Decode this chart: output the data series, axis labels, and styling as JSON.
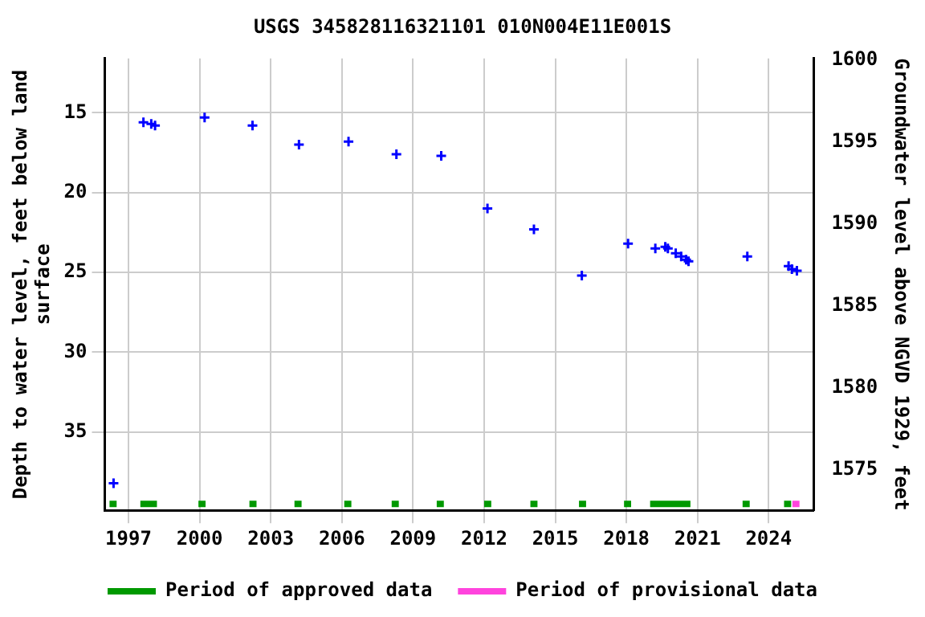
{
  "chart_data": {
    "type": "scatter",
    "title": "USGS 345828116321101 010N004E11E001S",
    "ylabel": "Depth to water level, feet below land surface",
    "y2label": "Groundwater level above NGVD 1929, feet",
    "x": [
      1996.37,
      1997.63,
      1997.96,
      1998.12,
      2000.21,
      2002.23,
      2004.19,
      2006.28,
      2008.3,
      2010.19,
      2012.14,
      2014.1,
      2016.12,
      2018.07,
      2019.22,
      2019.64,
      2019.75,
      2020.08,
      2020.31,
      2020.52,
      2020.62,
      2023.1,
      2024.84,
      2024.98,
      2025.19
    ],
    "series": [
      {
        "color": "#0000ff",
        "values": [
          38.2,
          15.6,
          15.7,
          15.8,
          15.3,
          15.8,
          17.0,
          16.8,
          17.6,
          17.7,
          21.0,
          22.3,
          25.2,
          23.2,
          23.5,
          23.4,
          23.5,
          23.8,
          24.0,
          24.2,
          24.3,
          24.0,
          24.6,
          24.8,
          24.9
        ]
      },
      {
        "type": "line",
        "name": "Period of approved data",
        "color": "#009900",
        "marker": "none",
        "x": [
          1996.2,
          1996.5,
          1997.0,
          1997.5,
          1998.2,
          1999.0,
          1999.95,
          2000.25,
          2001.0,
          2002.1,
          2002.4,
          2003.0,
          2004.0,
          2004.3,
          2005.0,
          2006.1,
          2006.4,
          2007.0,
          2008.1,
          2008.4,
          2009.0,
          2010.0,
          2010.3,
          2011.0,
          2012.0,
          2012.3,
          2013.0,
          2013.95,
          2014.25,
          2015.0,
          2016.0,
          2016.3,
          2017.0,
          2017.9,
          2018.2,
          2018.6,
          2019.0,
          2020.7,
          2021.5,
          2022.9,
          2023.2,
          2024.0,
          2024.65,
          2024.95
        ],
        "values": [
          39.5,
          39.5,
          null,
          39.5,
          39.5,
          null,
          39.5,
          39.5,
          null,
          39.5,
          39.5,
          null,
          39.5,
          39.5,
          null,
          39.5,
          39.5,
          null,
          39.5,
          39.5,
          null,
          39.5,
          39.5,
          null,
          39.5,
          39.5,
          null,
          39.5,
          39.5,
          null,
          39.5,
          39.5,
          null,
          39.5,
          39.5,
          null,
          39.5,
          39.5,
          null,
          39.5,
          39.5,
          null,
          39.5,
          39.5
        ]
      },
      {
        "type": "line",
        "name": "Period of provisional data",
        "color": "#ff44dd",
        "marker": "none",
        "x": [
          2025.0,
          2025.3
        ],
        "values": [
          39.5,
          39.5
        ]
      }
    ],
    "xlim": [
      1996.0,
      2025.9
    ],
    "xticks": [
      1997,
      2000,
      2003,
      2006,
      2009,
      2012,
      2015,
      2018,
      2021,
      2024
    ],
    "ylim": [
      39.9,
      11.6
    ],
    "yticks": [
      15,
      20,
      25,
      30,
      35
    ],
    "y2lim": [
      1572.5,
      1600.1
    ],
    "y2ticks": [
      1575,
      1580,
      1585,
      1590,
      1595,
      1600
    ],
    "grid": true,
    "legend": "bottom",
    "marker": "cross"
  }
}
